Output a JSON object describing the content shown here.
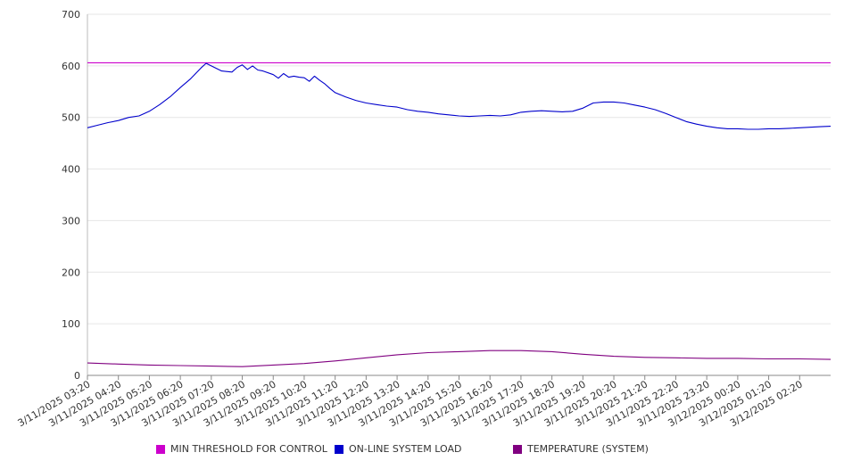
{
  "chart_data": {
    "type": "line",
    "ylim": [
      0,
      700
    ],
    "yticks": [
      0,
      100,
      200,
      300,
      400,
      500,
      600,
      700
    ],
    "grid": true,
    "legend_position": "bottom",
    "x_start": "3/11/2025 03:20",
    "x_end": "3/12/2025 03:20",
    "x_tick_labels": [
      "3/11/2025 03:20",
      "3/11/2025 04:20",
      "3/11/2025 05:20",
      "3/11/2025 06:20",
      "3/11/2025 07:20",
      "3/11/2025 08:20",
      "3/11/2025 09:20",
      "3/11/2025 10:20",
      "3/11/2025 11:20",
      "3/11/2025 12:20",
      "3/11/2025 13:20",
      "3/11/2025 14:20",
      "3/11/2025 15:20",
      "3/11/2025 16:20",
      "3/11/2025 17:20",
      "3/11/2025 18:20",
      "3/11/2025 19:20",
      "3/11/2025 20:20",
      "3/11/2025 21:20",
      "3/11/2025 22:20",
      "3/11/2025 23:20",
      "3/12/2025 00:20",
      "3/12/2025 01:20",
      "3/12/2025 02:20"
    ],
    "series": [
      {
        "name": "MIN THRESHOLD FOR CONTROL",
        "color": "#cc00cc",
        "x": [
          "3/11/2025 03:20",
          "3/12/2025 03:20"
        ],
        "values": [
          606,
          606
        ]
      },
      {
        "name": "ON-LINE SYSTEM LOAD",
        "color": "#0000cc",
        "x": [
          "3/11/2025 03:20",
          "3/11/2025 03:40",
          "3/11/2025 04:00",
          "3/11/2025 04:20",
          "3/11/2025 04:40",
          "3/11/2025 05:00",
          "3/11/2025 05:20",
          "3/11/2025 05:40",
          "3/11/2025 06:00",
          "3/11/2025 06:20",
          "3/11/2025 06:40",
          "3/11/2025 07:00",
          "3/11/2025 07:10",
          "3/11/2025 07:20",
          "3/11/2025 07:40",
          "3/11/2025 08:00",
          "3/11/2025 08:10",
          "3/11/2025 08:20",
          "3/11/2025 08:30",
          "3/11/2025 08:40",
          "3/11/2025 08:50",
          "3/11/2025 09:00",
          "3/11/2025 09:20",
          "3/11/2025 09:30",
          "3/11/2025 09:40",
          "3/11/2025 09:50",
          "3/11/2025 10:00",
          "3/11/2025 10:10",
          "3/11/2025 10:20",
          "3/11/2025 10:30",
          "3/11/2025 10:40",
          "3/11/2025 10:50",
          "3/11/2025 11:00",
          "3/11/2025 11:10",
          "3/11/2025 11:20",
          "3/11/2025 11:40",
          "3/11/2025 12:00",
          "3/11/2025 12:20",
          "3/11/2025 12:40",
          "3/11/2025 13:00",
          "3/11/2025 13:20",
          "3/11/2025 13:40",
          "3/11/2025 14:00",
          "3/11/2025 14:20",
          "3/11/2025 14:40",
          "3/11/2025 15:00",
          "3/11/2025 15:20",
          "3/11/2025 15:40",
          "3/11/2025 16:00",
          "3/11/2025 16:20",
          "3/11/2025 16:40",
          "3/11/2025 17:00",
          "3/11/2025 17:20",
          "3/11/2025 17:40",
          "3/11/2025 18:00",
          "3/11/2025 18:20",
          "3/11/2025 18:40",
          "3/11/2025 19:00",
          "3/11/2025 19:20",
          "3/11/2025 19:40",
          "3/11/2025 20:00",
          "3/11/2025 20:20",
          "3/11/2025 20:40",
          "3/11/2025 21:00",
          "3/11/2025 21:20",
          "3/11/2025 21:40",
          "3/11/2025 22:00",
          "3/11/2025 22:20",
          "3/11/2025 22:40",
          "3/11/2025 23:00",
          "3/11/2025 23:20",
          "3/11/2025 23:40",
          "3/12/2025 00:00",
          "3/12/2025 00:20",
          "3/12/2025 00:40",
          "3/12/2025 01:00",
          "3/12/2025 01:20",
          "3/12/2025 01:40",
          "3/12/2025 02:00",
          "3/12/2025 02:20",
          "3/12/2025 02:40",
          "3/12/2025 03:00",
          "3/12/2025 03:20"
        ],
        "values": [
          480,
          485,
          490,
          494,
          500,
          503,
          512,
          525,
          540,
          558,
          575,
          596,
          605,
          600,
          590,
          588,
          597,
          602,
          593,
          600,
          592,
          590,
          583,
          576,
          585,
          578,
          580,
          578,
          577,
          570,
          580,
          572,
          565,
          556,
          548,
          540,
          533,
          528,
          525,
          522,
          520,
          515,
          512,
          510,
          507,
          505,
          503,
          502,
          503,
          504,
          503,
          505,
          510,
          512,
          513,
          512,
          511,
          512,
          518,
          528,
          530,
          530,
          528,
          524,
          520,
          515,
          508,
          500,
          492,
          487,
          483,
          480,
          478,
          478,
          477,
          477,
          478,
          478,
          479,
          480,
          481,
          482,
          483
        ]
      },
      {
        "name": "TEMPERATURE (SYSTEM)",
        "color": "#800080",
        "x": [
          "3/11/2025 03:20",
          "3/11/2025 04:20",
          "3/11/2025 05:20",
          "3/11/2025 06:20",
          "3/11/2025 07:20",
          "3/11/2025 08:20",
          "3/11/2025 09:20",
          "3/11/2025 10:20",
          "3/11/2025 11:20",
          "3/11/2025 12:20",
          "3/11/2025 13:20",
          "3/11/2025 14:20",
          "3/11/2025 15:20",
          "3/11/2025 16:20",
          "3/11/2025 17:20",
          "3/11/2025 18:20",
          "3/11/2025 19:20",
          "3/11/2025 20:20",
          "3/11/2025 21:20",
          "3/11/2025 22:20",
          "3/11/2025 23:20",
          "3/12/2025 00:20",
          "3/12/2025 01:20",
          "3/12/2025 02:20",
          "3/12/2025 03:20"
        ],
        "values": [
          24,
          22,
          20,
          19,
          18,
          17,
          20,
          23,
          28,
          34,
          40,
          44,
          46,
          48,
          48,
          46,
          41,
          37,
          35,
          34,
          33,
          33,
          32,
          32,
          31
        ]
      }
    ]
  }
}
